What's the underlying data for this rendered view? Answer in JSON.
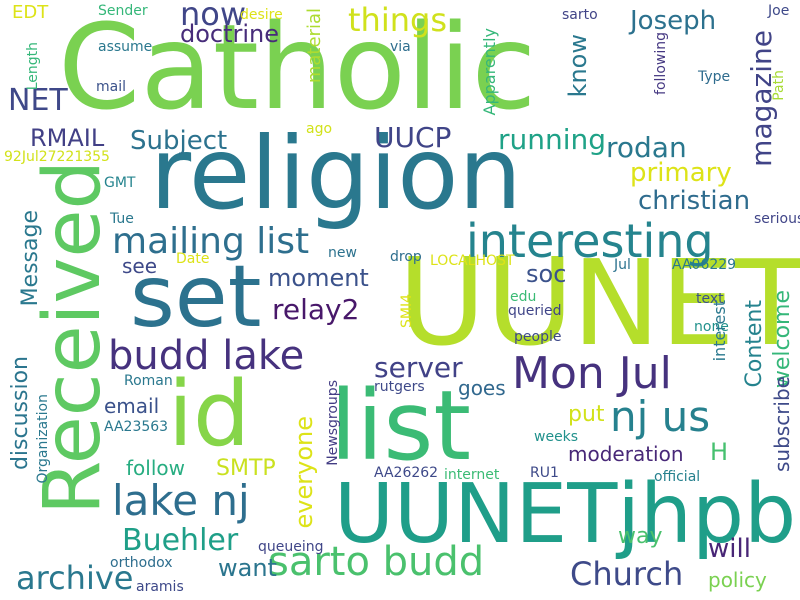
{
  "words": [
    {
      "text": "Catholic",
      "color": "#7ad151"
    },
    {
      "text": "religion",
      "color": "#2a788e"
    },
    {
      "text": "UU",
      "color": "#b5de2b"
    },
    {
      "text": "NET",
      "color": "#b5de2b"
    },
    {
      "text": "Received",
      "color": "#5ec962"
    },
    {
      "text": "set",
      "color": "#2c728e"
    },
    {
      "text": "id",
      "color": "#86d549"
    },
    {
      "text": "list",
      "color": "#3bbb75"
    },
    {
      "text": "UUNETjhpb",
      "color": "#1f9e89"
    },
    {
      "text": "interesting",
      "color": "#25848e"
    },
    {
      "text": "mailing list",
      "color": "#2e6f8e"
    },
    {
      "text": "budd lake",
      "color": "#46327e"
    },
    {
      "text": "Mon Jul",
      "color": "#46327e"
    },
    {
      "text": "nj us",
      "color": "#26818e"
    },
    {
      "text": "lake nj",
      "color": "#2e6e8e"
    },
    {
      "text": "sarto budd",
      "color": "#4ac16d"
    },
    {
      "text": "archive",
      "color": "#2a788e"
    },
    {
      "text": "Buehler",
      "color": "#1f9f88"
    },
    {
      "text": "Church",
      "color": "#3e4a89"
    },
    {
      "text": "things",
      "color": "#d0e11c"
    },
    {
      "text": "now",
      "color": "#404688"
    },
    {
      "text": "Joseph",
      "color": "#2c718e"
    },
    {
      "text": "doctrine",
      "color": "#472c7a"
    },
    {
      "text": "NET",
      "color": "#3f4889"
    },
    {
      "text": "RMAIL",
      "color": "#424086"
    },
    {
      "text": "Subject",
      "color": "#2c728e"
    },
    {
      "text": "UUCP",
      "color": "#404588"
    },
    {
      "text": "running",
      "color": "#1fa287"
    },
    {
      "text": "rodan",
      "color": "#2a788e"
    },
    {
      "text": "primary",
      "color": "#dde318"
    },
    {
      "text": "christian",
      "color": "#2f6c8e"
    },
    {
      "text": "magazine",
      "color": "#414487"
    },
    {
      "text": "know",
      "color": "#2a788e"
    },
    {
      "text": "Message",
      "color": "#2a788e"
    },
    {
      "text": "discussion",
      "color": "#2b758e"
    },
    {
      "text": "see",
      "color": "#3e4989"
    },
    {
      "text": "moment",
      "color": "#3b528b"
    },
    {
      "text": "relay2",
      "color": "#48186a"
    },
    {
      "text": "soc",
      "color": "#3b528b"
    },
    {
      "text": "server",
      "color": "#414287"
    },
    {
      "text": "email",
      "color": "#3b528b"
    },
    {
      "text": "SMTP",
      "color": "#cae11f"
    },
    {
      "text": "follow",
      "color": "#27ad81"
    },
    {
      "text": "want",
      "color": "#2b758e"
    },
    {
      "text": "everyone",
      "color": "#dde318"
    },
    {
      "text": "will",
      "color": "#482576"
    },
    {
      "text": "H",
      "color": "#46c06f"
    },
    {
      "text": "moderation",
      "color": "#482878"
    },
    {
      "text": "Content",
      "color": "#25838e"
    },
    {
      "text": "welcome",
      "color": "#35b779"
    },
    {
      "text": "subscribe",
      "color": "#3e4a89"
    },
    {
      "text": "put",
      "color": "#d2e21b"
    },
    {
      "text": "way",
      "color": "#4ac16d"
    },
    {
      "text": "policy",
      "color": "#7ad151"
    },
    {
      "text": "goes",
      "color": "#31688e"
    },
    {
      "text": "EDT",
      "color": "#dde318"
    },
    {
      "text": "Sender",
      "color": "#35b779"
    },
    {
      "text": "desire",
      "color": "#dde318"
    },
    {
      "text": "sarto",
      "color": "#414487"
    },
    {
      "text": "Joe",
      "color": "#3e4989"
    },
    {
      "text": "assume",
      "color": "#2a788e"
    },
    {
      "text": "via",
      "color": "#2e6e8e"
    },
    {
      "text": "material",
      "color": "#addc30"
    },
    {
      "text": "Apparently",
      "color": "#35b779"
    },
    {
      "text": "following",
      "color": "#453882"
    },
    {
      "text": "Type",
      "color": "#2f6c8e"
    },
    {
      "text": "Path",
      "color": "#a8db34"
    },
    {
      "text": "Length",
      "color": "#35b779"
    },
    {
      "text": "mail",
      "color": "#3b528b"
    },
    {
      "text": "ago",
      "color": "#d2e21b"
    },
    {
      "text": "92Jul27221355",
      "color": "#d2e21b"
    },
    {
      "text": "GMT",
      "color": "#25848e"
    },
    {
      "text": "Tue",
      "color": "#2a788e"
    },
    {
      "text": "Date",
      "color": "#dde318"
    },
    {
      "text": "new",
      "color": "#2c728e"
    },
    {
      "text": "drop",
      "color": "#2e6e8e"
    },
    {
      "text": "LOCALHOST",
      "color": "#dde318"
    },
    {
      "text": "serious",
      "color": "#404588"
    },
    {
      "text": "Jul",
      "color": "#2c728e"
    },
    {
      "text": "AA06229",
      "color": "#2a788e"
    },
    {
      "text": "text",
      "color": "#3b528b"
    },
    {
      "text": "edu",
      "color": "#3bbb75"
    },
    {
      "text": "queried",
      "color": "#404588"
    },
    {
      "text": "SMI4",
      "color": "#dde318"
    },
    {
      "text": "people",
      "color": "#3e4989"
    },
    {
      "text": "none",
      "color": "#21918c"
    },
    {
      "text": "interest",
      "color": "#2a788e"
    },
    {
      "text": "Roman",
      "color": "#2a788e"
    },
    {
      "text": "rutgers",
      "color": "#3e4989"
    },
    {
      "text": "AA23563",
      "color": "#2a788e"
    },
    {
      "text": "Organization",
      "color": "#2a788e"
    },
    {
      "text": "Newsgroups",
      "color": "#433d84"
    },
    {
      "text": "weeks",
      "color": "#21918c"
    },
    {
      "text": "AA26262",
      "color": "#3e4989"
    },
    {
      "text": "internet",
      "color": "#3bbb75"
    },
    {
      "text": "RU1",
      "color": "#3e4a89"
    },
    {
      "text": "official",
      "color": "#26818e"
    },
    {
      "text": "queueing",
      "color": "#404688"
    },
    {
      "text": "orthodox",
      "color": "#2e6e8e"
    },
    {
      "text": "aramis",
      "color": "#3e4989"
    }
  ]
}
